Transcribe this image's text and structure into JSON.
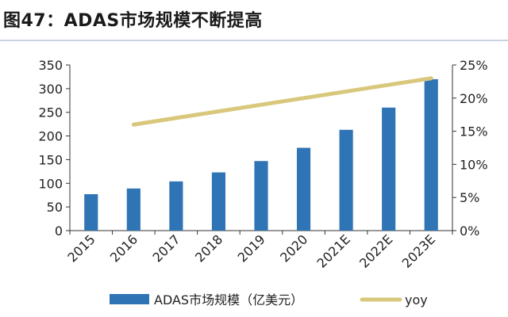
{
  "title": "图47：ADAS市场规模不断提高",
  "chart_data": {
    "type": "bar",
    "categories": [
      "2015",
      "2016",
      "2017",
      "2018",
      "2019",
      "2020",
      "2021E",
      "2022E",
      "2023E"
    ],
    "series": [
      {
        "name": "ADAS市场规模（亿美元）",
        "type": "bar",
        "axis": "left",
        "color": "#2f74b5",
        "values": [
          77,
          89,
          104,
          123,
          147,
          175,
          213,
          260,
          320
        ]
      },
      {
        "name": "yoy",
        "type": "line",
        "axis": "right",
        "color": "#d9c87c",
        "values": [
          null,
          16.0,
          17.0,
          18.0,
          19.0,
          20.0,
          21.0,
          22.0,
          23.0
        ]
      }
    ],
    "y_left": {
      "min": 0,
      "max": 350,
      "ticks": [
        "0",
        "50",
        "100",
        "150",
        "200",
        "250",
        "300",
        "350"
      ]
    },
    "y_right": {
      "min": 0,
      "max": 25,
      "ticks": [
        "0%",
        "5%",
        "10%",
        "15%",
        "20%",
        "25%"
      ]
    },
    "legend_position": "bottom",
    "grid": false
  }
}
